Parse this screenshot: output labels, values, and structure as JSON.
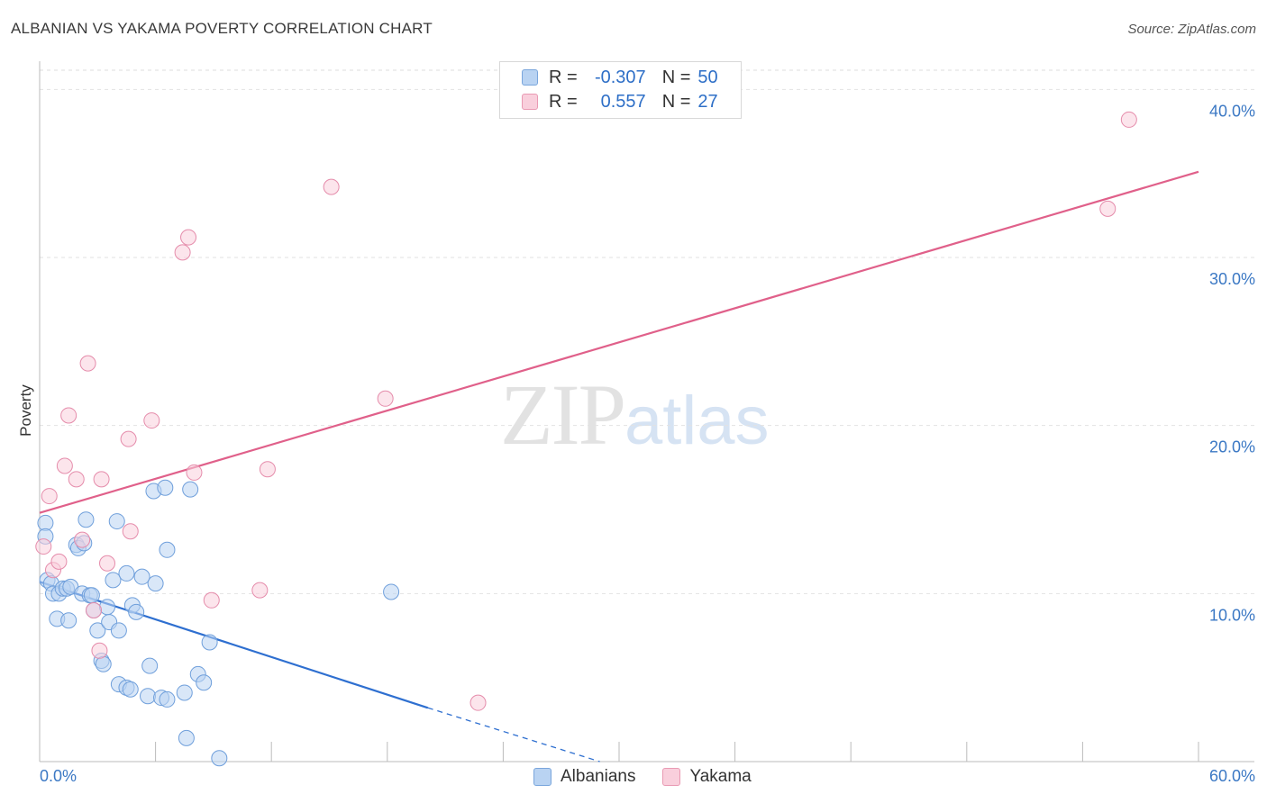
{
  "header": {
    "title": "ALBANIAN VS YAKAMA POVERTY CORRELATION CHART",
    "source": "Source: ZipAtlas.com"
  },
  "watermark": {
    "zip": "ZIP",
    "atlas": "atlas"
  },
  "legend": {
    "r_label": "R =",
    "n_label": "N =",
    "rows": [
      {
        "name": "Albanians",
        "r": "-0.307",
        "n": "50",
        "fill": "#b9d3f2",
        "stroke": "#7aa6dc"
      },
      {
        "name": "Yakama",
        "r": "0.557",
        "n": "27",
        "fill": "#f9cfdc",
        "stroke": "#e99ab3"
      }
    ]
  },
  "chart_data": {
    "type": "scatter",
    "title": "ALBANIAN VS YAKAMA POVERTY CORRELATION CHART",
    "xlabel": "",
    "ylabel": "Poverty",
    "xlim": [
      0,
      60
    ],
    "ylim": [
      0,
      42
    ],
    "x_tick_labels": [
      "0.0%",
      "60.0%"
    ],
    "y_ticks": [
      10,
      20,
      30,
      40
    ],
    "y_tick_labels": [
      "10.0%",
      "20.0%",
      "30.0%",
      "40.0%"
    ],
    "grid": true,
    "colors": {
      "albanians": "#2e6fd0",
      "yakama": "#e0608a",
      "tick": "#3b78c4"
    },
    "series": [
      {
        "name": "Albanians",
        "points": [
          [
            0.3,
            14.2
          ],
          [
            0.3,
            13.4
          ],
          [
            0.4,
            10.8
          ],
          [
            0.6,
            10.6
          ],
          [
            0.7,
            10.0
          ],
          [
            0.9,
            8.5
          ],
          [
            1.0,
            10.0
          ],
          [
            1.2,
            10.3
          ],
          [
            1.4,
            10.3
          ],
          [
            1.5,
            8.4
          ],
          [
            1.6,
            10.4
          ],
          [
            1.9,
            12.9
          ],
          [
            2.0,
            12.7
          ],
          [
            2.2,
            10.0
          ],
          [
            2.3,
            13.0
          ],
          [
            2.4,
            14.4
          ],
          [
            2.6,
            9.9
          ],
          [
            2.7,
            9.9
          ],
          [
            2.8,
            9.0
          ],
          [
            3.0,
            7.8
          ],
          [
            3.2,
            6.0
          ],
          [
            3.3,
            5.8
          ],
          [
            3.5,
            9.2
          ],
          [
            3.6,
            8.3
          ],
          [
            3.8,
            10.8
          ],
          [
            4.0,
            14.3
          ],
          [
            4.1,
            7.8
          ],
          [
            4.1,
            4.6
          ],
          [
            4.5,
            4.4
          ],
          [
            4.5,
            11.2
          ],
          [
            4.7,
            4.3
          ],
          [
            4.8,
            9.3
          ],
          [
            5.0,
            8.9
          ],
          [
            5.3,
            11.0
          ],
          [
            5.6,
            3.9
          ],
          [
            5.7,
            5.7
          ],
          [
            5.9,
            16.1
          ],
          [
            6.0,
            10.6
          ],
          [
            6.3,
            3.8
          ],
          [
            6.5,
            16.3
          ],
          [
            6.6,
            12.6
          ],
          [
            6.6,
            3.7
          ],
          [
            7.5,
            4.1
          ],
          [
            7.6,
            1.4
          ],
          [
            7.8,
            16.2
          ],
          [
            8.2,
            5.2
          ],
          [
            8.5,
            4.7
          ],
          [
            8.8,
            7.1
          ],
          [
            9.3,
            0.2
          ],
          [
            18.2,
            10.1
          ]
        ],
        "trend": {
          "x": [
            0,
            20.1
          ],
          "y": [
            10.7,
            3.2
          ],
          "dashed_to": [
            29,
            0
          ]
        }
      },
      {
        "name": "Yakama",
        "points": [
          [
            0.2,
            12.8
          ],
          [
            0.5,
            15.8
          ],
          [
            0.7,
            11.4
          ],
          [
            1.0,
            11.9
          ],
          [
            1.3,
            17.6
          ],
          [
            1.5,
            20.6
          ],
          [
            1.9,
            16.8
          ],
          [
            2.2,
            13.2
          ],
          [
            2.5,
            23.7
          ],
          [
            2.8,
            9.0
          ],
          [
            3.1,
            6.6
          ],
          [
            3.2,
            16.8
          ],
          [
            3.5,
            11.8
          ],
          [
            4.6,
            19.2
          ],
          [
            4.7,
            13.7
          ],
          [
            5.8,
            20.3
          ],
          [
            7.4,
            30.3
          ],
          [
            7.7,
            31.2
          ],
          [
            8.0,
            17.2
          ],
          [
            8.9,
            9.6
          ],
          [
            11.4,
            10.2
          ],
          [
            11.8,
            17.4
          ],
          [
            15.1,
            34.2
          ],
          [
            17.9,
            21.6
          ],
          [
            22.7,
            3.5
          ],
          [
            55.3,
            32.9
          ],
          [
            56.4,
            38.2
          ]
        ],
        "trend": {
          "x": [
            0,
            60
          ],
          "y": [
            14.8,
            35.1
          ]
        }
      }
    ]
  }
}
